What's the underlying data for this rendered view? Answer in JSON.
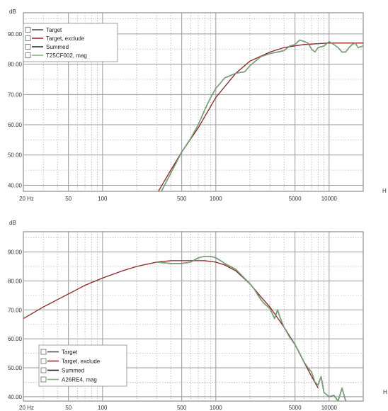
{
  "chart_data": [
    {
      "type": "line",
      "y_unit": "dB",
      "x_unit": "Hz",
      "x_scale": "log",
      "xlim": [
        20,
        20000
      ],
      "ylim": [
        38,
        97
      ],
      "grid": true,
      "legend_position": "top-left",
      "x_tick_labels": [
        {
          "x": 20,
          "label": "20 Hz"
        },
        {
          "x": 50,
          "label": "50"
        },
        {
          "x": 100,
          "label": "100"
        },
        {
          "x": 500,
          "label": "500"
        },
        {
          "x": 1000,
          "label": "1000"
        },
        {
          "x": 5000,
          "label": "5000"
        },
        {
          "x": 10000,
          "label": "10000"
        }
      ],
      "y_ticks": [
        40,
        50,
        60,
        70,
        80,
        90
      ],
      "y_tick_labels": [
        "40.00",
        "50.00",
        "60.00",
        "70.00",
        "80.00",
        "90.00"
      ],
      "series": [
        {
          "name": "Target",
          "color": "#505050",
          "x": [
            300,
            400,
            500,
            700,
            1000,
            1500,
            2000,
            3000,
            4000,
            6000,
            10000,
            15000,
            20000
          ],
          "y": [
            37,
            45,
            51,
            59,
            69,
            77,
            81,
            84,
            85.5,
            86.5,
            87,
            87,
            87
          ]
        },
        {
          "name": "Target, exclude",
          "color": "#a02828",
          "x": [
            300,
            400,
            500,
            700,
            1000,
            1500,
            2000,
            3000,
            4000,
            6000,
            10000,
            15000,
            20000
          ],
          "y": [
            37,
            45,
            51,
            59,
            69,
            77,
            81,
            84,
            85.5,
            86.5,
            87,
            87,
            87
          ]
        },
        {
          "name": "Summed",
          "color": "#303030",
          "x": [
            320,
            400,
            500,
            600,
            700,
            800,
            900,
            1000,
            1200,
            1500,
            1800,
            2000,
            2500,
            3000,
            3500,
            4000,
            4500,
            5000,
            5500,
            6000,
            6500,
            7000,
            7500,
            8000,
            9000,
            10000,
            11000,
            12000,
            13000,
            14000,
            15000,
            16000,
            17000,
            18000,
            20000
          ],
          "y": [
            37,
            44,
            51,
            55.5,
            60,
            65,
            69,
            72,
            75.5,
            77,
            77.5,
            79.5,
            82.5,
            83.5,
            84,
            84.5,
            86,
            86.5,
            88,
            87.5,
            87,
            85,
            84,
            85.5,
            86,
            87.5,
            86.5,
            85.5,
            84,
            84,
            85.5,
            86.5,
            87,
            85.5,
            86
          ]
        },
        {
          "name": "T25CF002, mag",
          "color": "#80b880",
          "x": [
            320,
            400,
            500,
            600,
            700,
            800,
            900,
            1000,
            1200,
            1500,
            1800,
            2000,
            2500,
            3000,
            3500,
            4000,
            4500,
            5000,
            5500,
            6000,
            6500,
            7000,
            7500,
            8000,
            9000,
            10000,
            11000,
            12000,
            13000,
            14000,
            15000,
            16000,
            17000,
            18000,
            20000
          ],
          "y": [
            37,
            44,
            51,
            55.5,
            60,
            65,
            69,
            72,
            75.5,
            77,
            77.5,
            79.5,
            82.5,
            83.5,
            84,
            84.5,
            86,
            86.5,
            88,
            87.5,
            87,
            85,
            84,
            85.5,
            86,
            87.5,
            86.5,
            85.5,
            84,
            84,
            85.5,
            86.5,
            87,
            85.5,
            86
          ]
        }
      ]
    },
    {
      "type": "line",
      "y_unit": "dB",
      "x_unit": "Hz",
      "x_scale": "log",
      "xlim": [
        20,
        20000
      ],
      "ylim": [
        38.5,
        97
      ],
      "grid": true,
      "legend_position": "bottom-left",
      "x_tick_labels": [
        {
          "x": 20,
          "label": "20 Hz"
        },
        {
          "x": 50,
          "label": "50"
        },
        {
          "x": 100,
          "label": "100"
        },
        {
          "x": 500,
          "label": "500"
        },
        {
          "x": 1000,
          "label": "1000"
        },
        {
          "x": 5000,
          "label": "5000"
        },
        {
          "x": 10000,
          "label": "10000"
        }
      ],
      "y_ticks": [
        40,
        50,
        60,
        70,
        80,
        90
      ],
      "y_tick_labels": [
        "40.00",
        "50.00",
        "60.00",
        "70.00",
        "80.00",
        "90.00"
      ],
      "series": [
        {
          "name": "Target",
          "color": "#505050",
          "x": [
            20,
            30,
            50,
            70,
            100,
            150,
            200,
            300,
            400,
            600,
            800,
            1000,
            1200,
            1500,
            2000,
            2500,
            3000,
            4000,
            5000,
            6000,
            7000,
            8000
          ],
          "y": [
            67,
            71,
            75.5,
            78.5,
            81,
            83.5,
            85,
            86.5,
            87,
            87,
            87,
            86.5,
            85.5,
            83.5,
            79,
            74.5,
            71,
            64,
            58,
            52,
            47,
            43
          ]
        },
        {
          "name": "Target, exclude",
          "color": "#a02828",
          "x": [
            20,
            30,
            50,
            70,
            100,
            150,
            200,
            300,
            400,
            600,
            800,
            1000,
            1200,
            1500,
            2000,
            2500,
            3000,
            4000,
            5000,
            6000,
            7000,
            8000
          ],
          "y": [
            67,
            71,
            75.5,
            78.5,
            81,
            83.5,
            85,
            86.5,
            87,
            87,
            87,
            86.5,
            85.5,
            83.5,
            79,
            74.5,
            71,
            64,
            58,
            52,
            47,
            43
          ]
        },
        {
          "name": "Summed",
          "color": "#202020",
          "x": [
            300,
            400,
            500,
            600,
            700,
            800,
            900,
            1000,
            1100,
            1200,
            1500,
            2000,
            2200,
            2500,
            2700,
            3000,
            3300,
            3500,
            3800,
            4000,
            4500,
            5000,
            5500,
            6000,
            6500,
            7000,
            7500,
            8000,
            8500,
            9000,
            10000,
            11000,
            12000,
            13000,
            14000
          ],
          "y": [
            86.5,
            86,
            86,
            86.5,
            88,
            88.5,
            88.5,
            88,
            87,
            86,
            84,
            79,
            77,
            73.5,
            72,
            70.5,
            67,
            70,
            66,
            64,
            60.5,
            58,
            55,
            52,
            50,
            48.5,
            45,
            44,
            47,
            41.5,
            40,
            40.5,
            38.5,
            43,
            38.5
          ]
        },
        {
          "name": "A26RE4, mag",
          "color": "#80b880",
          "x": [
            300,
            400,
            500,
            600,
            700,
            800,
            900,
            1000,
            1100,
            1200,
            1500,
            2000,
            2200,
            2500,
            2700,
            3000,
            3300,
            3500,
            3800,
            4000,
            4500,
            5000,
            5500,
            6000,
            6500,
            7000,
            7500,
            8000,
            8500,
            9000,
            10000,
            11000,
            12000,
            13000,
            14000
          ],
          "y": [
            86.5,
            86,
            86,
            86.5,
            88,
            88.5,
            88.5,
            88,
            87,
            86,
            84,
            79,
            77,
            73.5,
            72,
            70.5,
            67,
            70,
            66,
            64,
            60.5,
            58,
            55,
            52,
            50,
            48.5,
            45,
            44,
            47,
            41.5,
            40,
            40.5,
            38.5,
            43,
            38.5
          ]
        }
      ]
    }
  ]
}
